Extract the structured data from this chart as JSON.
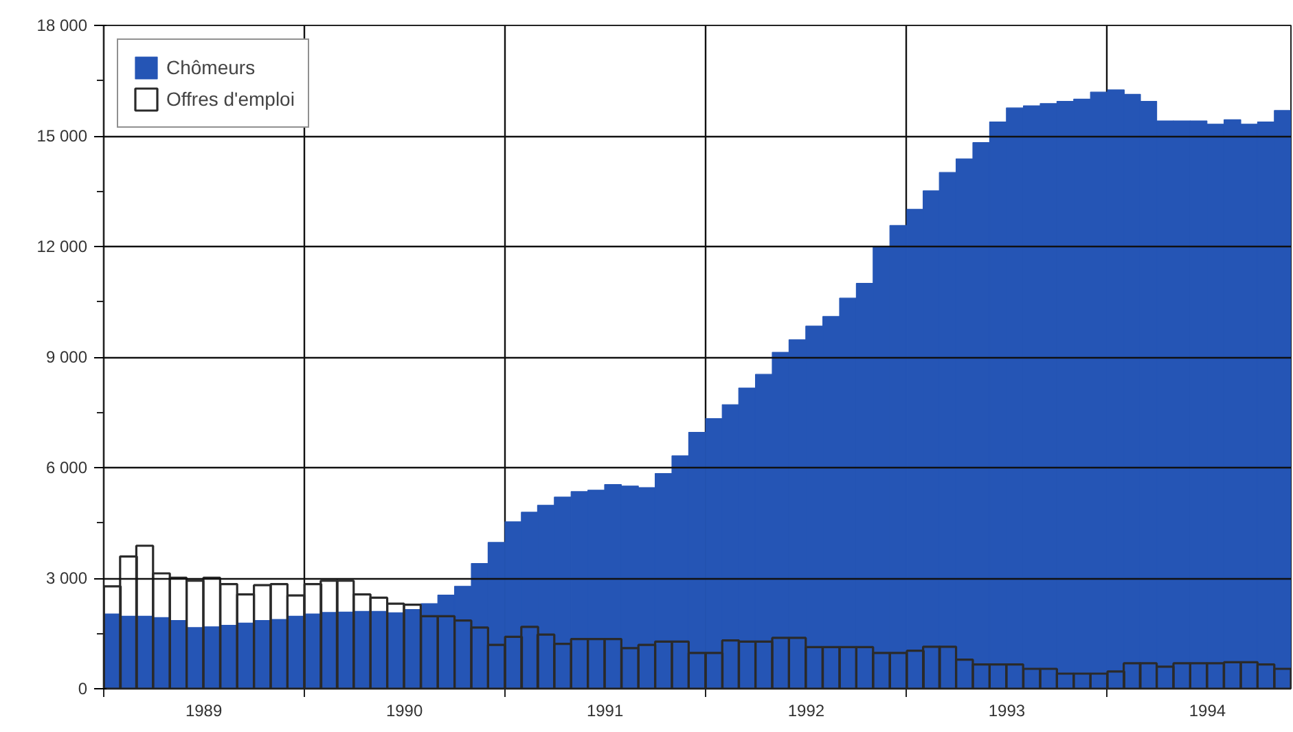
{
  "chart_data": {
    "type": "bar",
    "x": [
      "1989-01",
      "1989-02",
      "1989-03",
      "1989-04",
      "1989-05",
      "1989-06",
      "1989-07",
      "1989-08",
      "1989-09",
      "1989-10",
      "1989-11",
      "1989-12",
      "1990-01",
      "1990-02",
      "1990-03",
      "1990-04",
      "1990-05",
      "1990-06",
      "1990-07",
      "1990-08",
      "1990-09",
      "1990-10",
      "1990-11",
      "1990-12",
      "1991-01",
      "1991-02",
      "1991-03",
      "1991-04",
      "1991-05",
      "1991-06",
      "1991-07",
      "1991-08",
      "1991-09",
      "1991-10",
      "1991-11",
      "1991-12",
      "1992-01",
      "1992-02",
      "1992-03",
      "1992-04",
      "1992-05",
      "1992-06",
      "1992-07",
      "1992-08",
      "1992-09",
      "1992-10",
      "1992-11",
      "1992-12",
      "1993-01",
      "1993-02",
      "1993-03",
      "1993-04",
      "1993-05",
      "1993-06",
      "1993-07",
      "1993-08",
      "1993-09",
      "1993-10",
      "1993-11",
      "1993-12",
      "1994-01",
      "1994-02",
      "1994-03",
      "1994-04",
      "1994-05",
      "1994-06",
      "1994-07",
      "1994-08",
      "1994-09",
      "1994-10",
      "1994-11"
    ],
    "series": [
      {
        "name": "Chômeurs",
        "color": "#2555b5",
        "values": [
          2030,
          1970,
          1970,
          1930,
          1850,
          1660,
          1680,
          1720,
          1780,
          1850,
          1880,
          1970,
          2030,
          2070,
          2080,
          2100,
          2100,
          2060,
          2150,
          2310,
          2540,
          2780,
          3400,
          3970,
          4530,
          4790,
          4980,
          5200,
          5350,
          5390,
          5540,
          5500,
          5460,
          5840,
          6320,
          6960,
          7330,
          7710,
          8160,
          8530,
          9130,
          9470,
          9840,
          10100,
          10600,
          11000,
          12000,
          12570,
          13010,
          13510,
          14010,
          14380,
          14820,
          15380,
          15760,
          15820,
          15880,
          15940,
          16000,
          16190,
          16250,
          16130,
          15940,
          15410,
          15410,
          15410,
          15320,
          15440,
          15320,
          15380,
          15690
        ]
      },
      {
        "name": "Offres d'emploi",
        "color": "#2a2a2a",
        "values": [
          2780,
          3590,
          3880,
          3130,
          3010,
          2930,
          3010,
          2840,
          2560,
          2810,
          2840,
          2530,
          2840,
          2930,
          2930,
          2560,
          2470,
          2310,
          2280,
          1970,
          1970,
          1850,
          1660,
          1190,
          1410,
          1680,
          1470,
          1220,
          1350,
          1350,
          1350,
          1100,
          1190,
          1280,
          1280,
          970,
          970,
          1310,
          1280,
          1280,
          1380,
          1380,
          1130,
          1130,
          1130,
          1130,
          970,
          970,
          1030,
          1140,
          1140,
          790,
          660,
          660,
          660,
          540,
          540,
          410,
          410,
          410,
          470,
          690,
          690,
          600,
          690,
          690,
          690,
          720,
          720,
          660,
          540
        ]
      }
    ],
    "xlim": [
      "1989-01-01",
      "1994-12-01"
    ],
    "xticks": [
      {
        "value": "1989-01-01",
        "label": null
      },
      {
        "value": "1989-07-02",
        "label": "1989"
      },
      {
        "value": "1990-01-01",
        "label": null
      },
      {
        "value": "1990-07-02",
        "label": "1990"
      },
      {
        "value": "1991-01-01",
        "label": null
      },
      {
        "value": "1991-07-02",
        "label": "1991"
      },
      {
        "value": "1992-01-01",
        "label": null
      },
      {
        "value": "1992-07-02",
        "label": "1992"
      },
      {
        "value": "1993-01-01",
        "label": null
      },
      {
        "value": "1993-07-02",
        "label": "1993"
      },
      {
        "value": "1994-01-01",
        "label": null
      },
      {
        "value": "1994-07-02",
        "label": "1994"
      }
    ],
    "ylim": [
      0,
      18000
    ],
    "yticks": [
      {
        "value": 0,
        "label": "0"
      },
      {
        "value": 1500,
        "label": null
      },
      {
        "value": 3000,
        "label": "3 000"
      },
      {
        "value": 4500,
        "label": null
      },
      {
        "value": 6000,
        "label": "6 000"
      },
      {
        "value": 7500,
        "label": null
      },
      {
        "value": 9000,
        "label": "9 000"
      },
      {
        "value": 10500,
        "label": null
      },
      {
        "value": 12000,
        "label": "12 000"
      },
      {
        "value": 13500,
        "label": null
      },
      {
        "value": 15000,
        "label": "15 000"
      },
      {
        "value": 16500,
        "label": null
      },
      {
        "value": 18000,
        "label": "18 000"
      }
    ],
    "grid": true,
    "legend": "top left"
  }
}
